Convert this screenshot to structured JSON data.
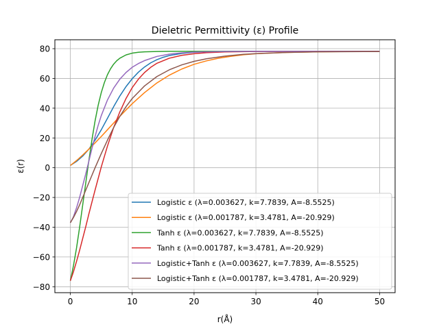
{
  "chart_data": {
    "type": "line",
    "title": "Dieletric Permittivity (ε) Profile",
    "xlabel": "r(Å)",
    "ylabel": "ε(r)",
    "xlim": [
      -2.5,
      52.5
    ],
    "ylim": [
      -84,
      86
    ],
    "xticks": [
      0,
      10,
      20,
      30,
      40,
      50
    ],
    "yticks": [
      -80,
      -60,
      -40,
      -20,
      0,
      20,
      40,
      60,
      80
    ],
    "grid": true,
    "legend_position": "lower-right",
    "series": [
      {
        "name": "Logistic ε (λ=0.003627, k=7.7839, A=-8.5525)",
        "color": "#1f77b4",
        "x": [
          0,
          1,
          2,
          3,
          4,
          5,
          6,
          7,
          8,
          9,
          10,
          11,
          12,
          13,
          14,
          15,
          16,
          18,
          20,
          22,
          25,
          30,
          35,
          40,
          45,
          50
        ],
        "y": [
          1.5,
          4.2,
          7.8,
          12.5,
          18.5,
          25.5,
          33.2,
          41,
          48.2,
          54.5,
          59.8,
          64.2,
          67.7,
          70.5,
          72.6,
          74.2,
          75.4,
          76.8,
          77.6,
          77.9,
          78.1,
          78.2,
          78.2,
          78.2,
          78.2,
          78.2
        ]
      },
      {
        "name": "Logistic ε (λ=0.001787, k=3.4781, A=-20.929)",
        "color": "#ff7f0e",
        "x": [
          0,
          1,
          2,
          3,
          4,
          5,
          6,
          7,
          8,
          9,
          10,
          12,
          14,
          16,
          18,
          20,
          22,
          24,
          26,
          28,
          30,
          35,
          40,
          45,
          50
        ],
        "y": [
          1.5,
          4.8,
          8.5,
          12.5,
          16.7,
          21,
          25.5,
          30,
          34.5,
          38.8,
          43,
          50.5,
          57,
          62.2,
          66.3,
          69.5,
          71.8,
          73.6,
          74.9,
          75.9,
          76.6,
          77.5,
          77.9,
          78.1,
          78.1
        ]
      },
      {
        "name": "Tanh ε (λ=0.003627, k=7.7839, A=-8.5525)",
        "color": "#2ca02c",
        "x": [
          0,
          0.5,
          1,
          1.5,
          2,
          2.5,
          3,
          3.5,
          4,
          4.5,
          5,
          5.5,
          6,
          6.5,
          7,
          7.5,
          8,
          9,
          10,
          11,
          12,
          14,
          16,
          20,
          25,
          30,
          40,
          50
        ],
        "y": [
          -76,
          -66,
          -54,
          -40,
          -25,
          -10,
          5,
          19,
          31.5,
          42,
          50.5,
          57.2,
          62.5,
          66.5,
          69.6,
          71.9,
          73.6,
          75.8,
          77,
          77.6,
          77.9,
          78.1,
          78.2,
          78.2,
          78.2,
          78.2,
          78.2,
          78.2
        ]
      },
      {
        "name": "Tanh ε (λ=0.001787, k=3.4781, A=-20.929)",
        "color": "#d62728",
        "x": [
          0,
          0.5,
          1,
          1.5,
          2,
          2.5,
          3,
          3.5,
          4,
          5,
          6,
          7,
          8,
          9,
          10,
          11,
          12,
          13,
          14,
          16,
          18,
          20,
          22,
          25,
          30,
          40,
          50
        ],
        "y": [
          -76,
          -70,
          -63,
          -55.5,
          -47.5,
          -39.5,
          -31,
          -23,
          -15,
          0.5,
          14.5,
          27,
          37.5,
          46.5,
          53.8,
          59.5,
          64,
          67.5,
          70.2,
          73.6,
          75.5,
          76.6,
          77.3,
          77.8,
          78.1,
          78.2,
          78.2
        ]
      },
      {
        "name": "Logistic+Tanh ε (λ=0.003627, k=7.7839, A=-8.5525)",
        "color": "#9467bd",
        "x": [
          0,
          0.5,
          1,
          1.5,
          2,
          2.5,
          3,
          3.5,
          4,
          4.5,
          5,
          6,
          7,
          8,
          9,
          10,
          11,
          12,
          14,
          16,
          18,
          20,
          25,
          30,
          40,
          50
        ],
        "y": [
          -37,
          -33,
          -27,
          -20,
          -12,
          -4,
          4.5,
          13,
          21,
          28.5,
          35,
          45.5,
          53.5,
          59.5,
          64,
          67.5,
          70,
          72,
          74.8,
          76.3,
          77.2,
          77.7,
          78.1,
          78.2,
          78.2,
          78.2
        ]
      },
      {
        "name": "Logistic+Tanh ε (λ=0.001787, k=3.4781, A=-20.929)",
        "color": "#8c564b",
        "x": [
          0,
          0.5,
          1,
          1.5,
          2,
          2.5,
          3,
          3.5,
          4,
          5,
          6,
          7,
          8,
          9,
          10,
          12,
          14,
          16,
          18,
          20,
          22,
          25,
          28,
          30,
          35,
          40,
          50
        ],
        "y": [
          -37,
          -33.5,
          -29.5,
          -25,
          -20,
          -15,
          -10,
          -5,
          0,
          9.5,
          18.5,
          27,
          34.5,
          41,
          46.5,
          55,
          61.3,
          65.8,
          69.1,
          71.5,
          73.2,
          75,
          76.2,
          76.7,
          77.5,
          77.9,
          78.1
        ]
      }
    ]
  }
}
